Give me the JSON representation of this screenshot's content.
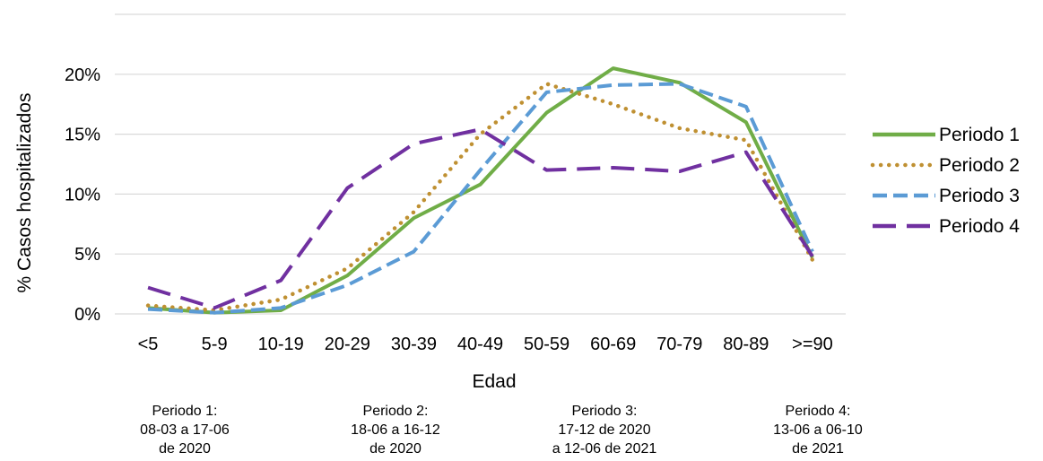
{
  "chart_data": {
    "type": "line",
    "categories": [
      "<5",
      "5-9",
      "10-19",
      "20-29",
      "30-39",
      "40-49",
      "50-59",
      "60-69",
      "70-79",
      "80-89",
      ">=90"
    ],
    "ylabel": "% Casos hospitalizados",
    "xlabel": "Edad",
    "yticks": [
      "0%",
      "5%",
      "10%",
      "15%",
      "20%"
    ],
    "ylim": [
      0,
      25
    ],
    "grid": true,
    "legend_position": "right",
    "series": [
      {
        "name": "Periodo 1",
        "color": "#70ad47",
        "dash": "solid",
        "values": [
          0.5,
          0.1,
          0.3,
          3.2,
          8.0,
          10.8,
          16.8,
          20.5,
          19.3,
          16.0,
          4.7
        ]
      },
      {
        "name": "Periodo 2",
        "color": "#bf9032",
        "dash": "dotted",
        "values": [
          0.7,
          0.3,
          1.2,
          3.8,
          8.5,
          15.0,
          19.2,
          17.5,
          15.5,
          14.5,
          4.5
        ]
      },
      {
        "name": "Periodo 3",
        "color": "#5b9bd5",
        "dash": "dashed",
        "values": [
          0.4,
          0.1,
          0.5,
          2.4,
          5.2,
          12.0,
          18.5,
          19.1,
          19.2,
          17.3,
          5.2
        ]
      },
      {
        "name": "Periodo 4",
        "color": "#7030a0",
        "dash": "longdash",
        "values": [
          2.2,
          0.5,
          2.8,
          10.5,
          14.2,
          15.4,
          12.0,
          12.2,
          11.9,
          13.5,
          4.8
        ]
      }
    ],
    "period_notes": [
      [
        "Periodo 1:",
        "08-03 a 17-06",
        "de 2020"
      ],
      [
        "Periodo 2:",
        "18-06 a 16-12",
        "de 2020"
      ],
      [
        "Periodo 3:",
        "17-12 de 2020",
        "a 12-06 de 2021"
      ],
      [
        "Periodo 4:",
        "13-06 a 06-10",
        "de 2021"
      ]
    ]
  }
}
